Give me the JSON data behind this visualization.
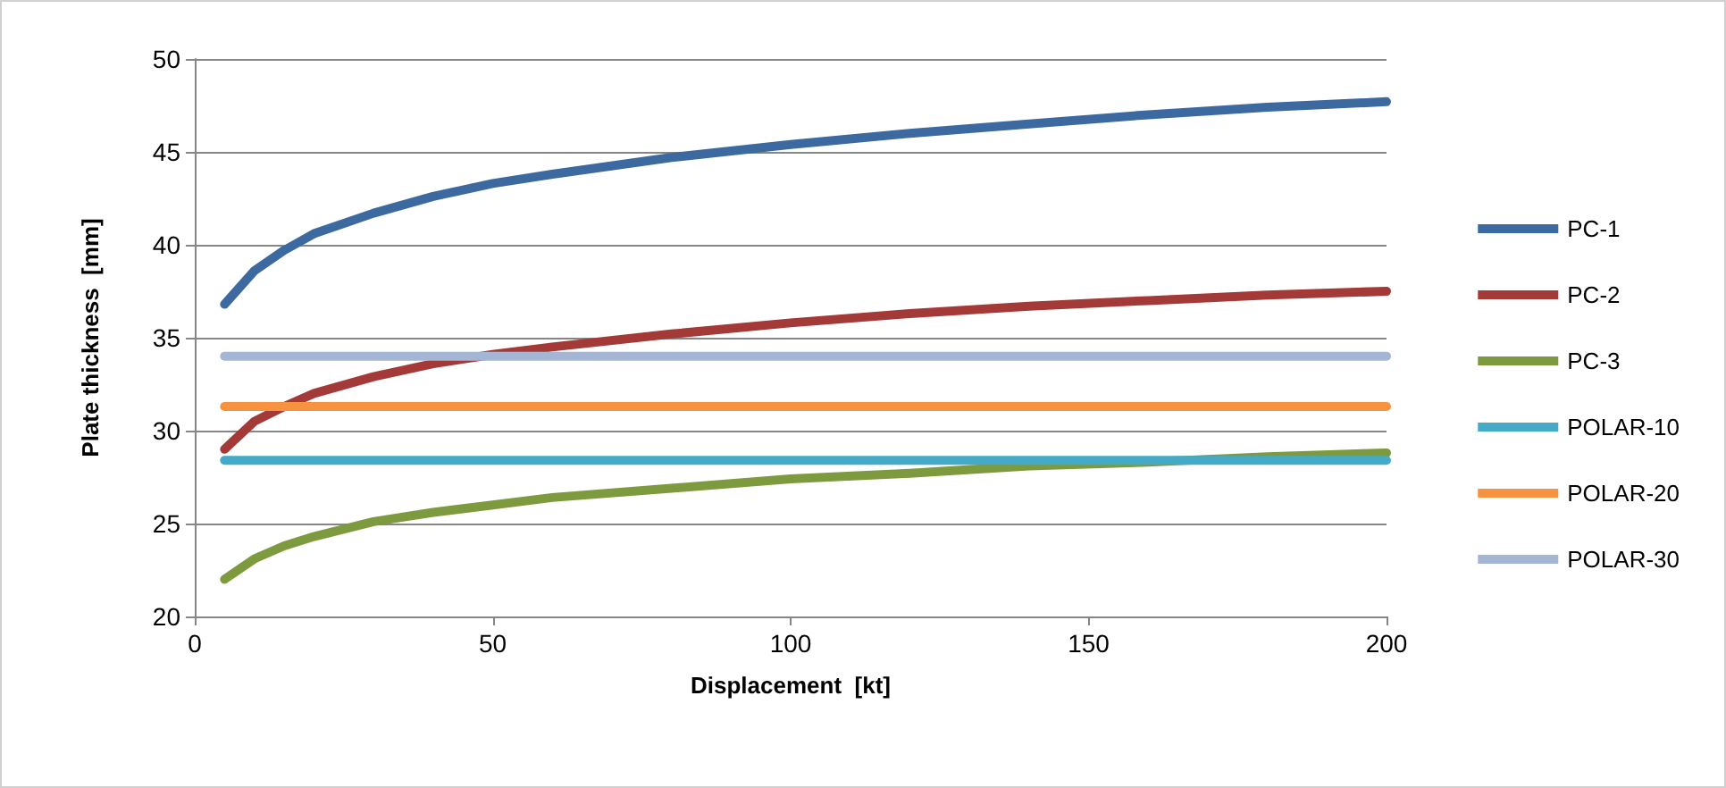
{
  "chart_data": {
    "type": "line",
    "xlabel": "Displacement  [kt]",
    "ylabel": "Plate thickness  [mm]",
    "x": [
      5,
      10,
      15,
      20,
      30,
      40,
      50,
      60,
      80,
      100,
      120,
      140,
      160,
      180,
      200
    ],
    "series": [
      {
        "name": "PC-1",
        "color": "#3c6aa0",
        "values": [
          36.8,
          38.6,
          39.7,
          40.6,
          41.7,
          42.6,
          43.3,
          43.8,
          44.7,
          45.4,
          46.0,
          46.5,
          47.0,
          47.4,
          47.7
        ]
      },
      {
        "name": "PC-2",
        "color": "#a33a38",
        "values": [
          29.0,
          30.5,
          31.3,
          32.0,
          32.9,
          33.6,
          34.1,
          34.5,
          35.2,
          35.8,
          36.3,
          36.7,
          37.0,
          37.3,
          37.5
        ]
      },
      {
        "name": "PC-3",
        "color": "#7d9a3f",
        "values": [
          22.0,
          23.1,
          23.8,
          24.3,
          25.1,
          25.6,
          26.0,
          26.4,
          26.9,
          27.4,
          27.7,
          28.1,
          28.3,
          28.6,
          28.8
        ]
      },
      {
        "name": "POLAR-10",
        "color": "#44aac8",
        "values": [
          28.4,
          28.4,
          28.4,
          28.4,
          28.4,
          28.4,
          28.4,
          28.4,
          28.4,
          28.4,
          28.4,
          28.4,
          28.4,
          28.4,
          28.4
        ]
      },
      {
        "name": "POLAR-20",
        "color": "#f69240",
        "values": [
          31.3,
          31.3,
          31.3,
          31.3,
          31.3,
          31.3,
          31.3,
          31.3,
          31.3,
          31.3,
          31.3,
          31.3,
          31.3,
          31.3,
          31.3
        ]
      },
      {
        "name": "POLAR-30",
        "color": "#a5b6d4",
        "values": [
          34.0,
          34.0,
          34.0,
          34.0,
          34.0,
          34.0,
          34.0,
          34.0,
          34.0,
          34.0,
          34.0,
          34.0,
          34.0,
          34.0,
          34.0
        ]
      }
    ],
    "xlim": [
      0,
      200
    ],
    "xticks": [
      0,
      50,
      100,
      150,
      200
    ],
    "ylim": [
      20,
      50
    ],
    "yticks": [
      20,
      25,
      30,
      35,
      40,
      45,
      50
    ],
    "grid": "y",
    "legend": "right",
    "marker": "none",
    "line_style": "solid"
  }
}
